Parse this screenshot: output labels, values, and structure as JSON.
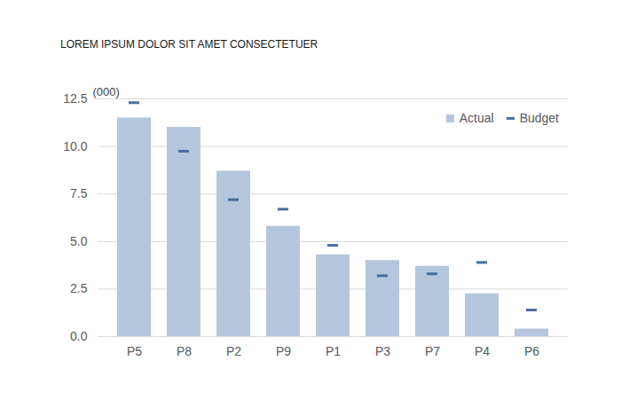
{
  "chart_data": {
    "type": "bar",
    "title": "LOREM IPSUM DOLOR SIT AMET CONSECTETUER",
    "ylabel": "(000)",
    "categories": [
      "P5",
      "P8",
      "P2",
      "P9",
      "P1",
      "P3",
      "P7",
      "P4",
      "P6"
    ],
    "series": [
      {
        "name": "Actual",
        "type": "bar",
        "color": "#b4c6dc",
        "values": [
          11.5,
          11.0,
          8.7,
          5.8,
          4.3,
          4.0,
          3.7,
          2.25,
          0.4
        ]
      },
      {
        "name": "Budget",
        "type": "tick",
        "marker": "dash",
        "color": "#4a6f9c",
        "values": [
          12.3,
          9.75,
          7.2,
          6.7,
          4.8,
          3.2,
          3.3,
          3.9,
          1.4
        ]
      }
    ],
    "ylim": [
      0,
      12.5
    ],
    "yticks": [
      {
        "value": 0,
        "label": "0.0"
      },
      2.5,
      {
        "value": 5,
        "label": "5.0"
      },
      7.5,
      {
        "value": 10,
        "label": "10.0"
      },
      12.5
    ],
    "grid": true,
    "legend": "top-right"
  }
}
